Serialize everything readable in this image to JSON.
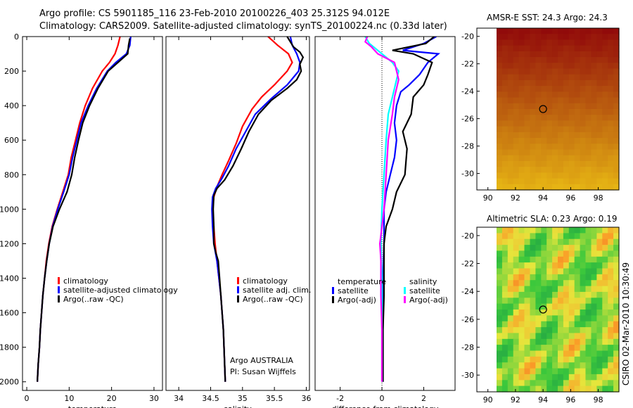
{
  "header": {
    "line1": "Argo profile: CS 5901185_116 23-Feb-2010 20100226_403 25.312S 94.012E",
    "line2": "Climatology: CARS2009. Satellite-adjusted climatology: synTS_20100224.nc (0.33d later)"
  },
  "side_stamp": "CSIRO 02-Mar-2010 10:30:49",
  "float_info": {
    "line1": "Argo AUSTRALIA",
    "line2": "PI: Susan Wijffels"
  },
  "colors": {
    "climatology": "#ff0000",
    "satellite": "#0000ff",
    "argo": "#000000",
    "cyan": "#00ffff",
    "magenta": "#ff00ff"
  },
  "chart_data": [
    {
      "type": "line",
      "id": "temperature",
      "xlabel": "temperature",
      "xlim": [
        -1,
        32
      ],
      "ylim": [
        0,
        2050
      ],
      "y_reversed": true,
      "xticks": [
        0,
        10,
        20,
        30
      ],
      "yticks": [
        0,
        200,
        400,
        600,
        800,
        1000,
        1200,
        1400,
        1600,
        1800,
        2000
      ],
      "legend": {
        "position": "lower-left",
        "entries": [
          "climatology",
          "satellite-adjusted climatology",
          "Argo(..raw -QC)"
        ]
      },
      "series": [
        {
          "name": "climatology",
          "color": "#ff0000",
          "points": [
            [
              22,
              0
            ],
            [
              21.5,
              50
            ],
            [
              20.8,
              100
            ],
            [
              19.5,
              150
            ],
            [
              17.8,
              200
            ],
            [
              15.5,
              300
            ],
            [
              13.8,
              400
            ],
            [
              12.5,
              500
            ],
            [
              11.5,
              600
            ],
            [
              10.5,
              700
            ],
            [
              9.8,
              800
            ],
            [
              8.5,
              900
            ],
            [
              7.2,
              1000
            ],
            [
              6,
              1100
            ],
            [
              5.2,
              1200
            ],
            [
              4.6,
              1300
            ],
            [
              4.2,
              1400
            ],
            [
              3.8,
              1500
            ],
            [
              3.5,
              1600
            ],
            [
              3.2,
              1700
            ],
            [
              3,
              1800
            ],
            [
              2.7,
              1900
            ],
            [
              2.5,
              2000
            ]
          ]
        },
        {
          "name": "satellite-adjusted climatology",
          "color": "#0000ff",
          "points": [
            [
              24.5,
              0
            ],
            [
              24.3,
              50
            ],
            [
              23.5,
              100
            ],
            [
              21,
              150
            ],
            [
              19,
              200
            ],
            [
              16.5,
              300
            ],
            [
              14.5,
              400
            ],
            [
              12.8,
              500
            ],
            [
              11.8,
              600
            ],
            [
              10.8,
              700
            ],
            [
              10,
              800
            ],
            [
              8.7,
              900
            ],
            [
              7.3,
              1000
            ],
            [
              6.1,
              1100
            ],
            [
              5.3,
              1200
            ],
            [
              4.7,
              1300
            ],
            [
              4.2,
              1400
            ],
            [
              3.8,
              1500
            ],
            [
              3.5,
              1600
            ],
            [
              3.2,
              1700
            ],
            [
              3,
              1800
            ],
            [
              2.7,
              1900
            ],
            [
              2.5,
              2000
            ]
          ]
        },
        {
          "name": "Argo(..raw -QC)",
          "color": "#000000",
          "points": [
            [
              24.3,
              10
            ],
            [
              24,
              50
            ],
            [
              23.8,
              100
            ],
            [
              21.5,
              150
            ],
            [
              19.2,
              200
            ],
            [
              16.8,
              300
            ],
            [
              14.8,
              400
            ],
            [
              13.2,
              500
            ],
            [
              12.2,
              600
            ],
            [
              11.3,
              700
            ],
            [
              10.6,
              800
            ],
            [
              9.5,
              900
            ],
            [
              7.7,
              1000
            ],
            [
              6.2,
              1100
            ],
            [
              5.3,
              1200
            ],
            [
              4.7,
              1300
            ],
            [
              4.2,
              1400
            ],
            [
              3.8,
              1500
            ],
            [
              3.5,
              1600
            ],
            [
              3.2,
              1700
            ],
            [
              3,
              1800
            ],
            [
              2.7,
              1900
            ],
            [
              2.5,
              2000
            ]
          ]
        }
      ]
    },
    {
      "type": "line",
      "id": "salinity",
      "xlabel": "salinity",
      "xlim": [
        33.8,
        36.05
      ],
      "ylim": [
        0,
        2050
      ],
      "y_reversed": true,
      "xticks": [
        34,
        34.5,
        35,
        35.5,
        36
      ],
      "yticks": [],
      "legend": {
        "position": "lower-right",
        "entries": [
          "climatology",
          "satellite adj. clim.",
          "Argo(..raw -QC)"
        ]
      },
      "series": [
        {
          "name": "climatology",
          "color": "#ff0000",
          "points": [
            [
              35.4,
              0
            ],
            [
              35.55,
              50
            ],
            [
              35.72,
              100
            ],
            [
              35.78,
              150
            ],
            [
              35.7,
              200
            ],
            [
              35.5,
              280
            ],
            [
              35.3,
              350
            ],
            [
              35.15,
              420
            ],
            [
              35,
              520
            ],
            [
              34.9,
              620
            ],
            [
              34.78,
              720
            ],
            [
              34.68,
              800
            ],
            [
              34.6,
              870
            ],
            [
              34.55,
              930
            ],
            [
              34.53,
              1000
            ],
            [
              34.55,
              1100
            ],
            [
              34.57,
              1200
            ],
            [
              34.6,
              1300
            ],
            [
              34.63,
              1400
            ],
            [
              34.66,
              1500
            ],
            [
              34.68,
              1600
            ],
            [
              34.7,
              1700
            ],
            [
              34.71,
              1800
            ],
            [
              34.72,
              1900
            ],
            [
              34.73,
              2000
            ]
          ]
        },
        {
          "name": "satellite adj. clim.",
          "color": "#0000ff",
          "points": [
            [
              35.75,
              0
            ],
            [
              35.78,
              50
            ],
            [
              35.85,
              100
            ],
            [
              35.9,
              150
            ],
            [
              35.88,
              200
            ],
            [
              35.7,
              280
            ],
            [
              35.45,
              360
            ],
            [
              35.2,
              450
            ],
            [
              35.05,
              550
            ],
            [
              34.9,
              650
            ],
            [
              34.78,
              750
            ],
            [
              34.68,
              820
            ],
            [
              34.58,
              880
            ],
            [
              34.53,
              930
            ],
            [
              34.52,
              1000
            ],
            [
              34.53,
              1100
            ],
            [
              34.55,
              1200
            ],
            [
              34.6,
              1300
            ],
            [
              34.63,
              1400
            ],
            [
              34.66,
              1500
            ],
            [
              34.68,
              1600
            ],
            [
              34.7,
              1700
            ],
            [
              34.71,
              1800
            ],
            [
              34.72,
              1900
            ],
            [
              34.73,
              2000
            ]
          ]
        },
        {
          "name": "Argo(..raw -QC)",
          "color": "#000000",
          "points": [
            [
              35.7,
              0
            ],
            [
              35.75,
              30
            ],
            [
              35.8,
              60
            ],
            [
              35.9,
              90
            ],
            [
              35.95,
              120
            ],
            [
              35.9,
              160
            ],
            [
              35.92,
              200
            ],
            [
              35.85,
              250
            ],
            [
              35.7,
              300
            ],
            [
              35.45,
              370
            ],
            [
              35.25,
              450
            ],
            [
              35.1,
              550
            ],
            [
              34.98,
              650
            ],
            [
              34.85,
              750
            ],
            [
              34.72,
              830
            ],
            [
              34.6,
              880
            ],
            [
              34.55,
              920
            ],
            [
              34.54,
              1000
            ],
            [
              34.55,
              1100
            ],
            [
              34.55,
              1200
            ],
            [
              34.58,
              1250
            ],
            [
              34.62,
              1300
            ],
            [
              34.64,
              1400
            ],
            [
              34.66,
              1500
            ],
            [
              34.68,
              1600
            ],
            [
              34.7,
              1700
            ],
            [
              34.71,
              1800
            ],
            [
              34.72,
              1900
            ],
            [
              34.73,
              2000
            ]
          ]
        }
      ]
    },
    {
      "type": "line",
      "id": "difference",
      "xlabel": "difference from climatology",
      "xlim": [
        -3.2,
        3.5
      ],
      "ylim": [
        0,
        2050
      ],
      "y_reversed": true,
      "xticks": [
        -2,
        0,
        2
      ],
      "yticks": [],
      "zero_line": true,
      "legend": {
        "position": "lower-center",
        "groups": [
          {
            "title": "temperature",
            "entries": [
              "satellite",
              "Argo(-adj)"
            ]
          },
          {
            "title": "salinity",
            "entries": [
              "satellite",
              "Argo(-adj)"
            ]
          }
        ]
      },
      "series": [
        {
          "name": "temperature satellite",
          "color": "#0000ff",
          "points": [
            [
              2.6,
              0
            ],
            [
              2,
              40
            ],
            [
              1,
              80
            ],
            [
              2.7,
              100
            ],
            [
              2.2,
              150
            ],
            [
              1.8,
              220
            ],
            [
              1.3,
              280
            ],
            [
              0.9,
              320
            ],
            [
              0.7,
              400
            ],
            [
              0.6,
              500
            ],
            [
              0.7,
              600
            ],
            [
              0.6,
              700
            ],
            [
              0.4,
              800
            ],
            [
              0.2,
              900
            ],
            [
              0.1,
              1000
            ],
            [
              0.1,
              1200
            ],
            [
              0.05,
              1400
            ],
            [
              0.05,
              1600
            ],
            [
              0.05,
              1800
            ],
            [
              0.05,
              2000
            ]
          ]
        },
        {
          "name": "temperature Argo(-adj)",
          "color": "#000000",
          "points": [
            [
              2.5,
              0
            ],
            [
              2.1,
              40
            ],
            [
              0.5,
              80
            ],
            [
              1.5,
              100
            ],
            [
              2.4,
              150
            ],
            [
              2.2,
              220
            ],
            [
              2,
              280
            ],
            [
              1.5,
              350
            ],
            [
              1.4,
              450
            ],
            [
              1,
              550
            ],
            [
              1.2,
              650
            ],
            [
              1.1,
              800
            ],
            [
              0.7,
              900
            ],
            [
              0.5,
              1000
            ],
            [
              0.2,
              1100
            ],
            [
              0.1,
              1200
            ],
            [
              0.1,
              1300
            ],
            [
              0.1,
              1500
            ],
            [
              0.05,
              1700
            ],
            [
              0.05,
              1900
            ],
            [
              0.05,
              2000
            ]
          ]
        },
        {
          "name": "salinity satellite",
          "color": "#00ffff",
          "points": [
            [
              -0.8,
              0
            ],
            [
              -0.6,
              40
            ],
            [
              -0.2,
              80
            ],
            [
              0.5,
              150
            ],
            [
              0.8,
              200
            ],
            [
              0.7,
              250
            ],
            [
              0.5,
              350
            ],
            [
              0.3,
              450
            ],
            [
              0.2,
              600
            ],
            [
              0.1,
              800
            ],
            [
              0,
              1000
            ],
            [
              -0.05,
              1200
            ],
            [
              0,
              1400
            ],
            [
              0,
              1600
            ],
            [
              0,
              1800
            ],
            [
              0,
              2000
            ]
          ]
        },
        {
          "name": "salinity Argo(-adj)",
          "color": "#ff00ff",
          "points": [
            [
              -0.7,
              0
            ],
            [
              -0.8,
              30
            ],
            [
              -0.5,
              60
            ],
            [
              -0.2,
              100
            ],
            [
              0.6,
              150
            ],
            [
              0.8,
              250
            ],
            [
              0.6,
              350
            ],
            [
              0.5,
              450
            ],
            [
              0.3,
              600
            ],
            [
              0.2,
              800
            ],
            [
              0.1,
              1000
            ],
            [
              -0.1,
              1200
            ],
            [
              -0.05,
              1300
            ],
            [
              -0.05,
              1500
            ],
            [
              0,
              1700
            ],
            [
              0,
              2000
            ]
          ]
        }
      ]
    },
    {
      "type": "heatmap",
      "id": "amsr-e-sst",
      "title": "AMSR-E SST: 24.3 Argo: 24.3",
      "xlim": [
        89.2,
        99.5
      ],
      "ylim": [
        -31.2,
        -19.4
      ],
      "xticks": [
        90,
        92,
        94,
        96,
        98
      ],
      "yticks": [
        -20,
        -22,
        -24,
        -26,
        -28,
        -30
      ],
      "marker": {
        "x": 94,
        "y": -25.3
      }
    },
    {
      "type": "heatmap",
      "id": "altimetric-sla",
      "title": "Altimetric SLA: 0.23 Argo: 0.19",
      "xlim": [
        89.2,
        99.5
      ],
      "ylim": [
        -31.2,
        -19.4
      ],
      "xticks": [
        90,
        92,
        94,
        96,
        98
      ],
      "yticks": [
        -20,
        -22,
        -24,
        -26,
        -28,
        -30
      ],
      "marker": {
        "x": 94,
        "y": -25.3
      }
    }
  ]
}
